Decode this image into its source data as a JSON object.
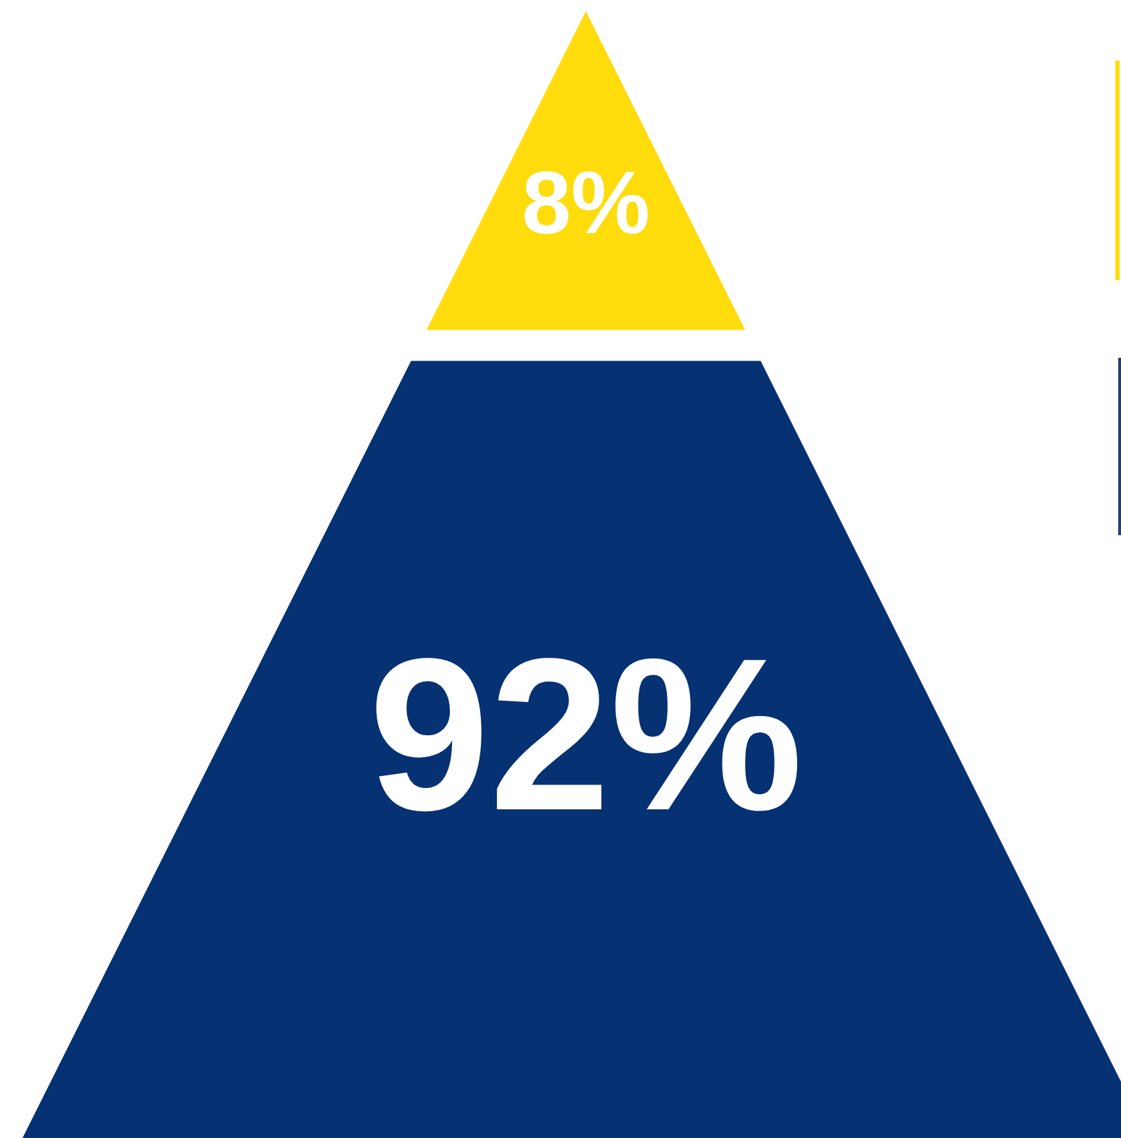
{
  "chart_data": {
    "type": "other",
    "categories": [
      null,
      null
    ],
    "values": [
      8,
      92
    ],
    "value_labels": [
      "8%",
      "92%"
    ],
    "colors": [
      "#ffdc0b",
      "#063173"
    ]
  }
}
